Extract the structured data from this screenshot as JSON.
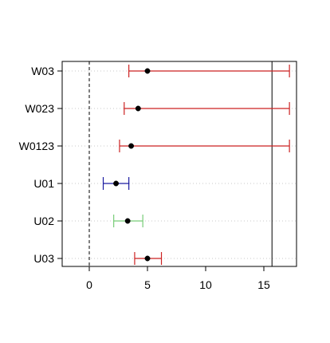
{
  "chart_data": {
    "type": "forest",
    "categories": [
      "W03",
      "W023",
      "W0123",
      "U01",
      "U02",
      "U03"
    ],
    "points": [
      {
        "label": "W03",
        "estimate": 5.0,
        "lower": 3.4,
        "upper": 17.2,
        "color": "#cc2222"
      },
      {
        "label": "W023",
        "estimate": 4.2,
        "lower": 3.0,
        "upper": 17.2,
        "color": "#cc2222"
      },
      {
        "label": "W0123",
        "estimate": 3.6,
        "lower": 2.6,
        "upper": 17.2,
        "color": "#cc2222"
      },
      {
        "label": "U01",
        "estimate": 2.3,
        "lower": 1.2,
        "upper": 3.4,
        "color": "#1a1aa0"
      },
      {
        "label": "U02",
        "estimate": 3.3,
        "lower": 2.1,
        "upper": 4.6,
        "color": "#77cc77"
      },
      {
        "label": "U03",
        "estimate": 5.0,
        "lower": 3.9,
        "upper": 6.2,
        "color": "#cc2222"
      }
    ],
    "x_ticks": [
      0,
      5,
      10,
      15
    ],
    "xlim": [
      -2.3,
      17.7
    ],
    "reference_lines": [
      {
        "x": 0,
        "style": "dashed"
      },
      {
        "x": 15.7,
        "style": "solid"
      }
    ],
    "grid": "horizontal-dotted",
    "title": "",
    "xlabel": "",
    "ylabel": ""
  }
}
